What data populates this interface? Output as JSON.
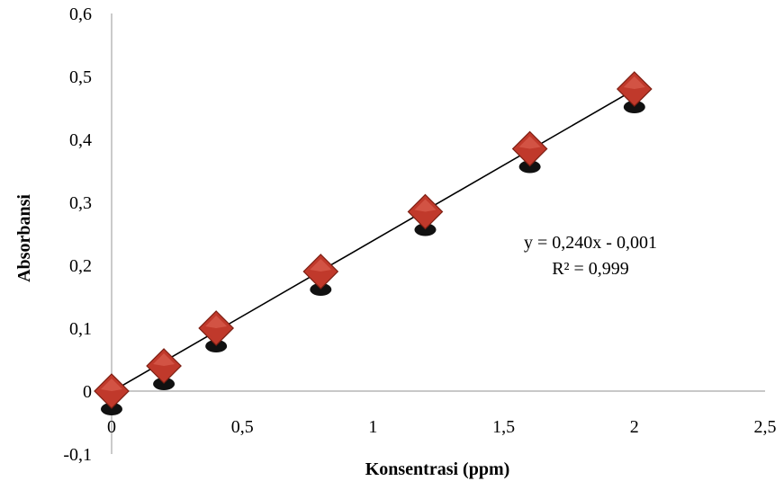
{
  "chart_data": {
    "type": "scatter",
    "title": "",
    "xlabel": "Konsentrasi (ppm)",
    "ylabel": "Absorbansi",
    "xlim": [
      0,
      2.5
    ],
    "ylim": [
      -0.1,
      0.6
    ],
    "x_ticks": [
      {
        "value": 0,
        "label": "0"
      },
      {
        "value": 0.5,
        "label": "0,5"
      },
      {
        "value": 1,
        "label": "1"
      },
      {
        "value": 1.5,
        "label": "1,5"
      },
      {
        "value": 2,
        "label": "2"
      },
      {
        "value": 2.5,
        "label": "2,5"
      }
    ],
    "y_ticks": [
      {
        "value": -0.1,
        "label": "-0,1"
      },
      {
        "value": 0,
        "label": "0"
      },
      {
        "value": 0.1,
        "label": "0,1"
      },
      {
        "value": 0.2,
        "label": "0,2"
      },
      {
        "value": 0.3,
        "label": "0,3"
      },
      {
        "value": 0.4,
        "label": "0,4"
      },
      {
        "value": 0.5,
        "label": "0,5"
      },
      {
        "value": 0.6,
        "label": "0,6"
      }
    ],
    "grid": false,
    "marker": "diamond",
    "marker_color": "#c0392b",
    "series": [
      {
        "x": [
          0,
          0.2,
          0.4,
          0.8,
          1.2,
          1.6,
          2.0
        ],
        "y": [
          0.0,
          0.04,
          0.1,
          0.19,
          0.285,
          0.385,
          0.48
        ]
      }
    ],
    "trendline": {
      "slope": 0.24,
      "intercept": -0.001,
      "x_range": [
        0,
        2.0
      ],
      "color": "#000000"
    },
    "annotations": {
      "equation": "y = 0,240x - 0,001",
      "r_squared": "R² = 0,999"
    }
  }
}
